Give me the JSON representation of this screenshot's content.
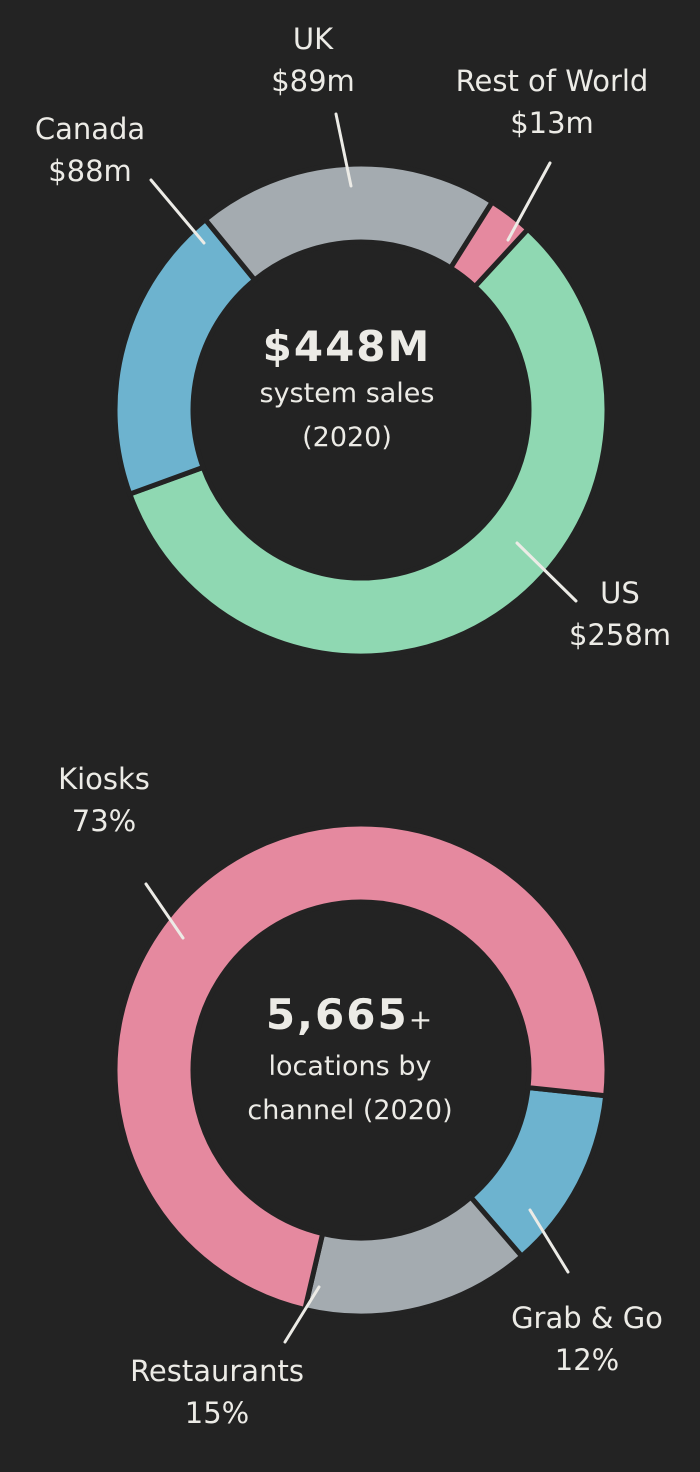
{
  "chart_data": [
    {
      "type": "pie",
      "variant": "donut",
      "title": "$448M system sales (2020)",
      "center_value": "$448M",
      "center_lines": [
        "system sales",
        "(2020)"
      ],
      "unit": "$m",
      "slices": [
        {
          "label": "US",
          "value": 258,
          "display": "$258m",
          "color": "#8fd8b2"
        },
        {
          "label": "Canada",
          "value": 88,
          "display": "$88m",
          "color": "#6db3cf"
        },
        {
          "label": "UK",
          "value": 89,
          "display": "$89m",
          "color": "#a4abb0"
        },
        {
          "label": "Rest of World",
          "value": 13,
          "display": "$13m",
          "color": "#e5899f"
        }
      ]
    },
    {
      "type": "pie",
      "variant": "donut",
      "title": "5,665+ locations by channel (2020)",
      "center_value": "5,665",
      "center_suffix": "+",
      "center_lines": [
        "locations by",
        "channel (2020)"
      ],
      "unit": "%",
      "slices": [
        {
          "label": "Kiosks",
          "value": 73,
          "display": "73%",
          "color": "#e5899f"
        },
        {
          "label": "Grab & Go",
          "value": 12,
          "display": "12%",
          "color": "#6db3cf"
        },
        {
          "label": "Restaurants",
          "value": 15,
          "display": "15%",
          "color": "#a4abb0"
        }
      ]
    }
  ],
  "colors": {
    "background": "#232323",
    "text": "#ecebe6"
  }
}
